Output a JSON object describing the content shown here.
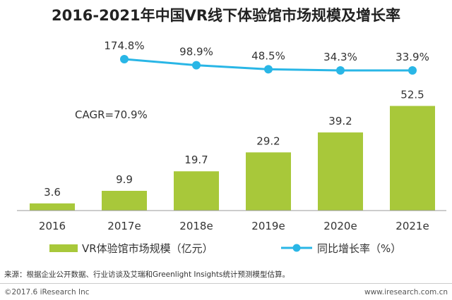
{
  "chart_data": {
    "type": "bar+line",
    "title": "2016-2021年中国VR线下体验馆市场规模及增长率",
    "categories": [
      "2016",
      "2017e",
      "2018e",
      "2019e",
      "2020e",
      "2021e"
    ],
    "bar_series": {
      "name": "VR体验馆市场规模（亿元）",
      "values": [
        3.6,
        9.9,
        19.7,
        29.2,
        39.2,
        52.5
      ],
      "labels": [
        "3.6",
        "9.9",
        "19.7",
        "29.2",
        "39.2",
        "52.5"
      ],
      "color": "#a8c83a"
    },
    "line_series": {
      "name": "同比增长率（%）",
      "values": [
        174.8,
        98.9,
        48.5,
        34.3,
        33.9
      ],
      "labels": [
        "174.8%",
        "98.9%",
        "48.5%",
        "34.3%",
        "33.9%"
      ],
      "categories": [
        "2017e",
        "2018e",
        "2019e",
        "2020e",
        "2021e"
      ],
      "color": "#29b6e6"
    },
    "annotation": "CAGR=70.9%",
    "legend_placement": "bottom",
    "grid": false
  },
  "source_text": "来源：根据企业公开数据、行业访谈及艾瑞和Greenlight Insights统计预测模型估算。",
  "footer": {
    "copyright": "©2017.6 iResearch Inc",
    "website": "www.iresearch.com.cn"
  }
}
